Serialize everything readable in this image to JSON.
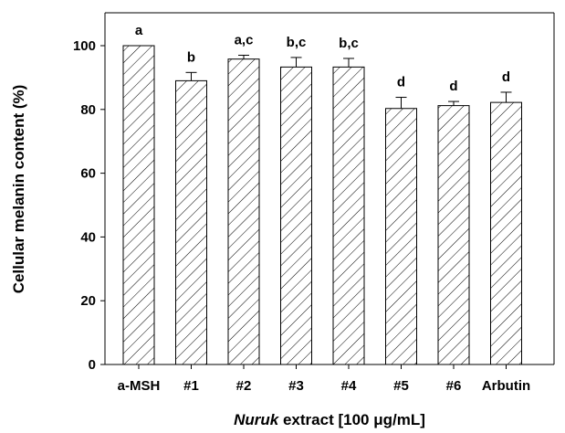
{
  "chart_data": {
    "type": "bar",
    "title": "",
    "ylabel": "Cellular melanin content (%)",
    "xlabel": {
      "italic_part": "Nuruk",
      "rest_part": " extract [100 μg/mL]"
    },
    "ylim": [
      0,
      110
    ],
    "yticks": [
      "0",
      "20",
      "40",
      "60",
      "80",
      "100"
    ],
    "categories": [
      "a-MSH",
      "#1",
      "#2",
      "#3",
      "#4",
      "#5",
      "#6",
      "Arbutin"
    ],
    "values": [
      100,
      89,
      95.8,
      93.3,
      93.3,
      80.3,
      81.2,
      82.2
    ],
    "errors": [
      0,
      2.6,
      1.2,
      3.0,
      2.7,
      3.5,
      1.3,
      3.2
    ],
    "significance": [
      "a",
      "b",
      "a,c",
      "b,c",
      "b,c",
      "d",
      "d",
      "d"
    ],
    "bar_pattern": "diagonal-hatch",
    "colors": {
      "bar_stroke": "#000000",
      "hatch": "#000000",
      "background": "#ffffff"
    }
  }
}
